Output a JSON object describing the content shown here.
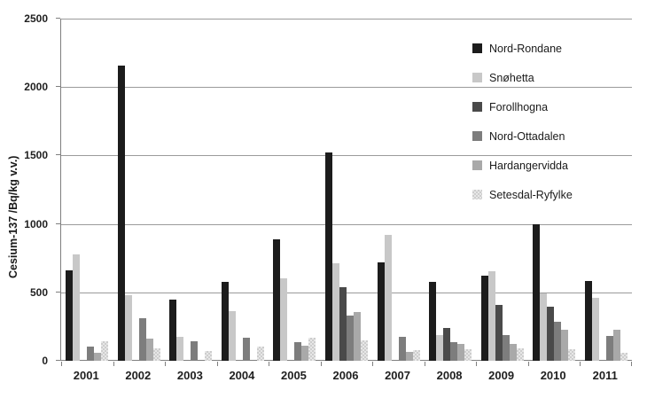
{
  "chart_data": {
    "type": "bar",
    "title": "",
    "xlabel": "",
    "ylabel": "Cesium-137 /Bq/kg v.v.)",
    "ylim": [
      0,
      2500
    ],
    "ytick_step": 500,
    "yticks": [
      0,
      500,
      1000,
      1500,
      2000,
      2500
    ],
    "grid": "horizontal",
    "legend_position": "inside-upper-right",
    "categories": [
      "2001",
      "2002",
      "2003",
      "2004",
      "2005",
      "2006",
      "2007",
      "2008",
      "2009",
      "2010",
      "2011"
    ],
    "series": [
      {
        "name": "Nord-Rondane",
        "color": "#1c1c1c",
        "pattern": "solid",
        "values": [
          660,
          2160,
          450,
          575,
          890,
          1525,
          720,
          575,
          620,
          1000,
          585
        ]
      },
      {
        "name": "Snøhetta",
        "color": "#c8c8c8",
        "pattern": "solid",
        "values": [
          775,
          480,
          175,
          360,
          600,
          710,
          920,
          190,
          655,
          490,
          460
        ]
      },
      {
        "name": "Forollhogna",
        "color": "#4a4a4a",
        "pattern": "solid",
        "values": [
          0,
          0,
          0,
          0,
          0,
          540,
          0,
          240,
          410,
          395,
          0
        ]
      },
      {
        "name": "Nord-Ottadalen",
        "color": "#7d7d7d",
        "pattern": "solid",
        "values": [
          105,
          310,
          140,
          170,
          135,
          330,
          175,
          135,
          185,
          285,
          180
        ]
      },
      {
        "name": "Hardangervidda",
        "color": "#a9a9a9",
        "pattern": "solid",
        "values": [
          60,
          160,
          0,
          0,
          110,
          355,
          65,
          120,
          125,
          230,
          230
        ]
      },
      {
        "name": "Setesdal-Ryfylke",
        "color": "#e0e0e0",
        "pattern": "checker",
        "values": [
          140,
          90,
          70,
          105,
          170,
          150,
          75,
          85,
          90,
          85,
          60
        ]
      }
    ],
    "colors": {
      "gridline": "#9b9b9b",
      "axis": "#7f7f7f",
      "text": "#1f1f1f",
      "background": "#ffffff"
    }
  }
}
